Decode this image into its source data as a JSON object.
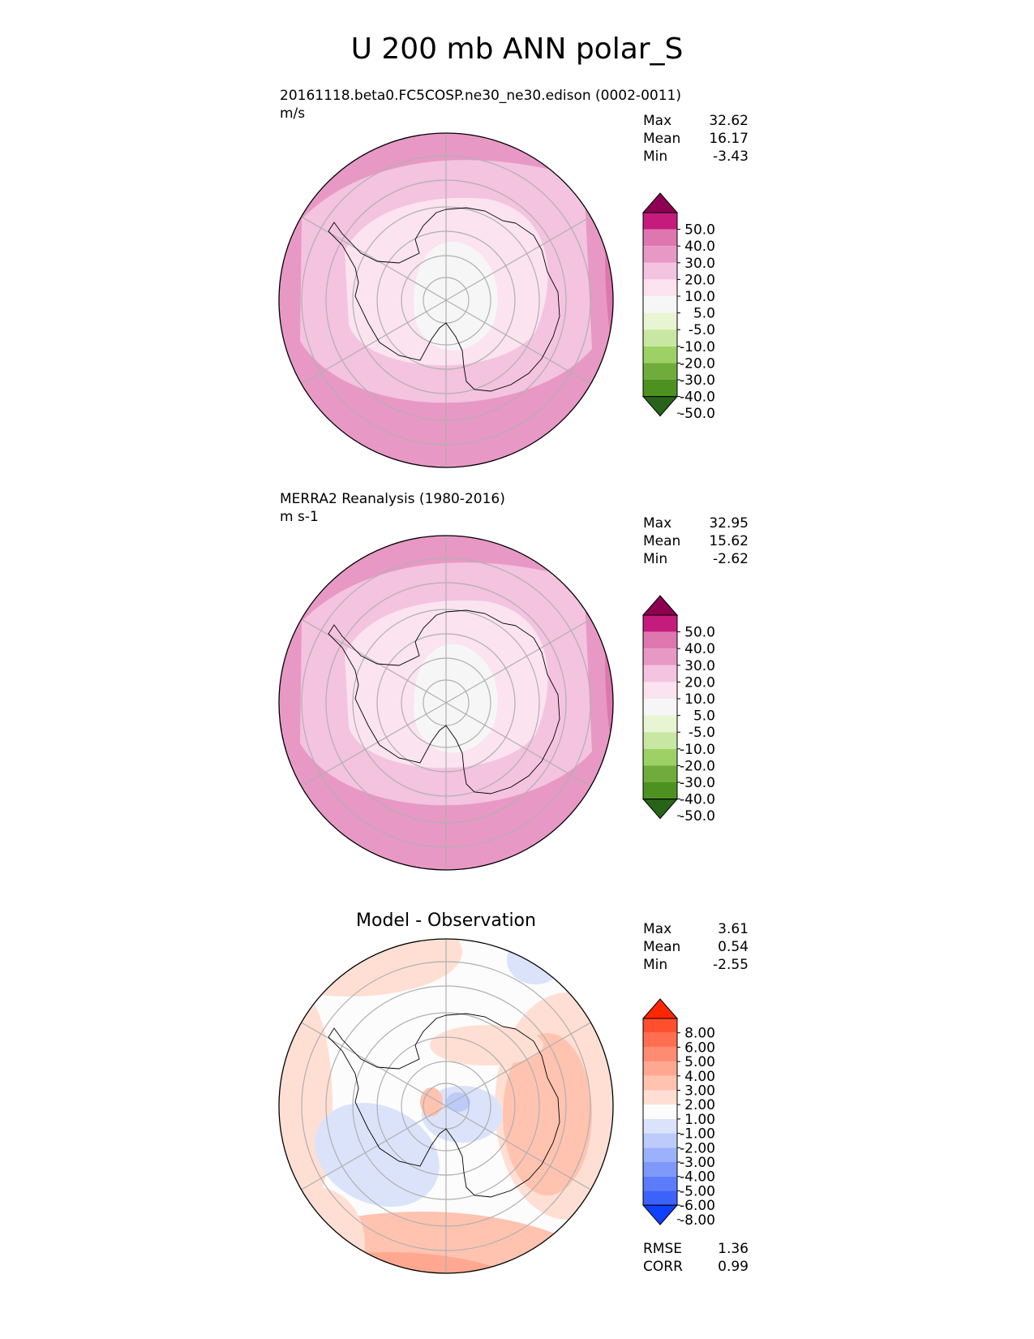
{
  "title": "U 200 mb ANN polar_S",
  "panels": [
    {
      "id": "test",
      "title": "20161118.beta0.FC5COSP.ne30_ne30.edison (0002-0011)",
      "units": "m/s",
      "stats": [
        {
          "label": "Max",
          "value": "32.62"
        },
        {
          "label": "Mean",
          "value": "16.17"
        },
        {
          "label": "Min",
          "value": "-3.43"
        }
      ]
    },
    {
      "id": "ref",
      "title": "MERRA2 Reanalysis (1980-2016)",
      "units": "m s-1",
      "stats": [
        {
          "label": "Max",
          "value": "32.95"
        },
        {
          "label": "Mean",
          "value": "15.62"
        },
        {
          "label": "Min",
          "value": "-2.62"
        }
      ]
    },
    {
      "id": "diff",
      "title": "Model - Observation",
      "stats": [
        {
          "label": "Max",
          "value": "3.61"
        },
        {
          "label": "Mean",
          "value": "0.54"
        },
        {
          "label": "Min",
          "value": "-2.55"
        }
      ],
      "metrics": [
        {
          "label": "RMSE",
          "value": "1.36"
        },
        {
          "label": "CORR",
          "value": "0.99"
        }
      ]
    }
  ],
  "chart_data": [
    {
      "type": "heatmap",
      "projection": "south-polar-stereographic",
      "variable": "U 200 mb",
      "season": "ANN",
      "colorbar": {
        "extend": "both",
        "tick_labels": [
          "50.0",
          "40.0",
          "30.0",
          "20.0",
          "10.0",
          "5.0",
          "-5.0",
          "-10.0",
          "-20.0",
          "-30.0",
          "-40.0",
          "-50.0"
        ],
        "colors": [
          "#8e0152",
          "#c51b7d",
          "#de77ae",
          "#e898c5",
          "#f3c3e0",
          "#fbe3ef",
          "#f6f6f6",
          "#e7f5d3",
          "#c8e7a3",
          "#9dd166",
          "#70ac3b",
          "#4d9221",
          "#276419"
        ]
      },
      "field_bands_outer_to_inner": [
        {
          "range": "20 to 30",
          "color": "#e898c5"
        },
        {
          "range": "10 to 20",
          "color": "#f3c3e0"
        },
        {
          "range": "5 to 10",
          "color": "#fbe3ef"
        },
        {
          "range": "-5 to 5",
          "color": "#f6f6f6"
        }
      ]
    },
    {
      "type": "heatmap",
      "projection": "south-polar-stereographic",
      "variable": "U 200 mb",
      "season": "ANN",
      "colorbar": {
        "extend": "both",
        "tick_labels": [
          "50.0",
          "40.0",
          "30.0",
          "20.0",
          "10.0",
          "5.0",
          "-5.0",
          "-10.0",
          "-20.0",
          "-30.0",
          "-40.0",
          "-50.0"
        ],
        "colors": [
          "#8e0152",
          "#c51b7d",
          "#de77ae",
          "#e898c5",
          "#f3c3e0",
          "#fbe3ef",
          "#f6f6f6",
          "#e7f5d3",
          "#c8e7a3",
          "#9dd166",
          "#70ac3b",
          "#4d9221",
          "#276419"
        ]
      },
      "field_bands_outer_to_inner": [
        {
          "range": "20 to 30",
          "color": "#e898c5"
        },
        {
          "range": "10 to 20",
          "color": "#f3c3e0"
        },
        {
          "range": "5 to 10",
          "color": "#fbe3ef"
        },
        {
          "range": "-5 to 5",
          "color": "#f6f6f6"
        }
      ]
    },
    {
      "type": "heatmap",
      "projection": "south-polar-stereographic",
      "variable": "U 200 mb difference",
      "season": "ANN",
      "colorbar": {
        "extend": "both",
        "tick_labels": [
          "8.00",
          "6.00",
          "5.00",
          "4.00",
          "3.00",
          "2.00",
          "1.00",
          "-1.00",
          "-2.00",
          "-3.00",
          "-4.00",
          "-5.00",
          "-6.00",
          "-8.00"
        ],
        "colors": [
          "#ff2600",
          "#ff4f2e",
          "#ff6e51",
          "#ff8b73",
          "#ffa891",
          "#ffc3b0",
          "#ffdfd3",
          "#fcfcfc",
          "#dbe3fb",
          "#bccbfa",
          "#9cb1fb",
          "#7e99fb",
          "#5d7cfb",
          "#3d62fb",
          "#1040ff"
        ]
      },
      "field_regions": [
        {
          "where": "outer ring lower-left",
          "range": "2 to 4",
          "color": "#ffa891"
        },
        {
          "where": "outer ring top-left",
          "range": "1 to 2",
          "color": "#ffdfd3"
        },
        {
          "where": "right side sector",
          "range": "1 to 3",
          "color": "#ffc3b0"
        },
        {
          "where": "west Antarctic / Ross sector",
          "range": "-2 to -1",
          "color": "#dbe3fb"
        },
        {
          "where": "upper right blob",
          "range": "-2 to -1",
          "color": "#dbe3fb"
        },
        {
          "where": "pole center",
          "range": "-3 to 2",
          "color": "#bccbfa"
        }
      ]
    }
  ]
}
